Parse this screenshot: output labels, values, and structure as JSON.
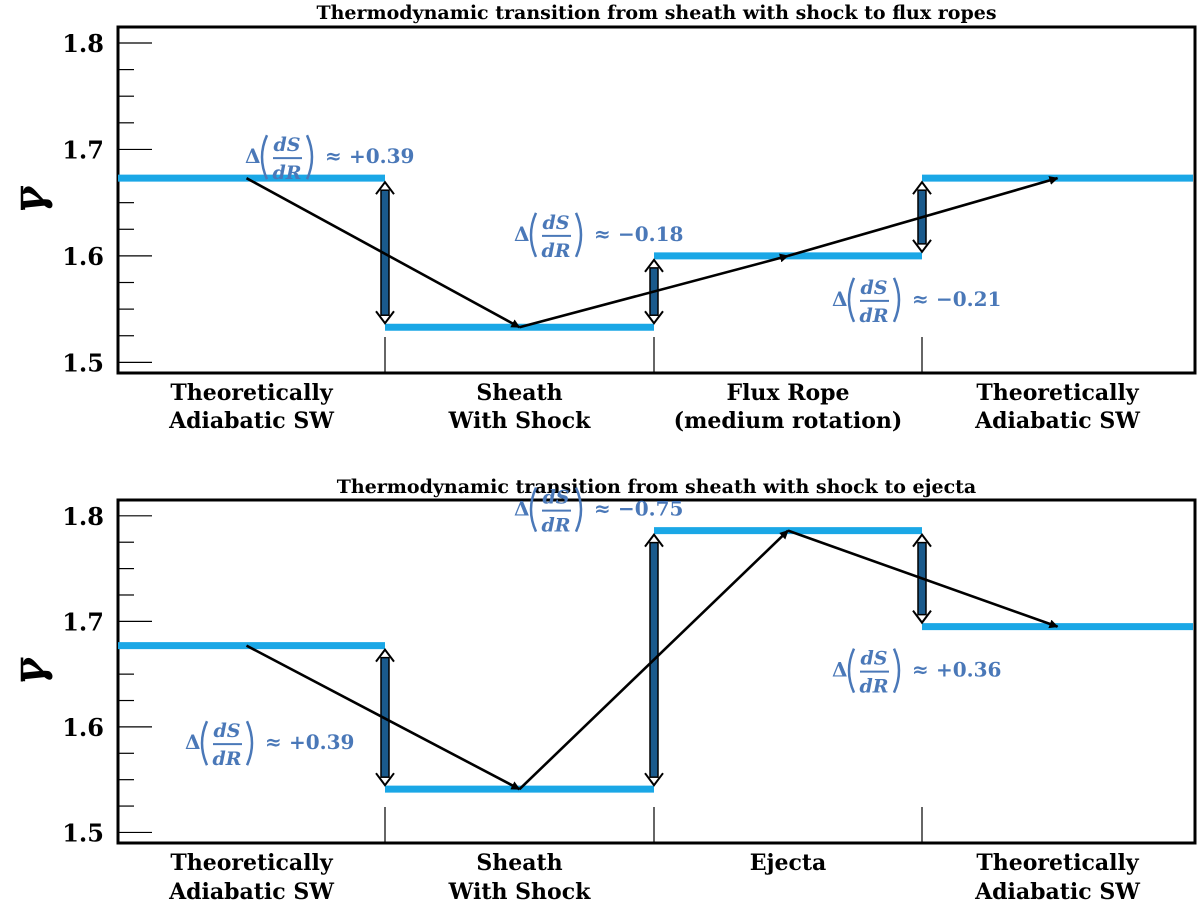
{
  "chart_data": [
    {
      "type": "line",
      "title": "Thermodynamic transition from sheath with shock to flux ropes",
      "ylabel": "γ",
      "ylim": [
        1.49,
        1.815
      ],
      "yticks": [
        "1.5",
        "1.6",
        "1.7",
        "1.8"
      ],
      "categories": [
        [
          "Theoretically",
          "Adiabatic  SW"
        ],
        [
          "Sheath",
          "With Shock"
        ],
        [
          "Flux Rope",
          "(medium  rotation)"
        ],
        [
          "Theoretically",
          "Adiabatic  SW"
        ]
      ],
      "series": [
        {
          "values": [
            1.673,
            1.533,
            1.6,
            1.673
          ]
        }
      ],
      "annotations": [
        {
          "after_segment": 0,
          "value": "+0.39",
          "placement": "above-left"
        },
        {
          "after_segment": 1,
          "value": "−0.18",
          "placement": "above-left"
        },
        {
          "after_segment": 2,
          "value": "−0.21",
          "placement": "below"
        }
      ],
      "annotation_parts": {
        "delta": "Δ",
        "num": "dS",
        "den": "dR",
        "approx": "≈"
      },
      "colors": {
        "level": "#1aa7e6",
        "annotation": "#4a78b8",
        "arrow": "#000000",
        "bracket_fill": "#1a5a8c"
      }
    },
    {
      "type": "line",
      "title": "Thermodynamic transition from sheath with shock to ejecta",
      "ylabel": "γ",
      "ylim": [
        1.49,
        1.815
      ],
      "yticks": [
        "1.5",
        "1.6",
        "1.7",
        "1.8"
      ],
      "categories": [
        [
          "Theoretically",
          "Adiabatic  SW"
        ],
        [
          "Sheath",
          "With Shock"
        ],
        [
          "Ejecta"
        ],
        [
          "Theoretically",
          "Adiabatic  SW"
        ]
      ],
      "series": [
        {
          "values": [
            1.677,
            1.541,
            1.786,
            1.695
          ]
        }
      ],
      "annotations": [
        {
          "after_segment": 0,
          "value": "+0.39",
          "placement": "below-left"
        },
        {
          "after_segment": 1,
          "value": "−0.75",
          "placement": "above-left"
        },
        {
          "after_segment": 2,
          "value": "+0.36",
          "placement": "below"
        }
      ],
      "annotation_parts": {
        "delta": "Δ",
        "num": "dS",
        "den": "dR",
        "approx": "≈"
      },
      "colors": {
        "level": "#1aa7e6",
        "annotation": "#4a78b8",
        "arrow": "#000000",
        "bracket_fill": "#1a5a8c"
      }
    }
  ]
}
